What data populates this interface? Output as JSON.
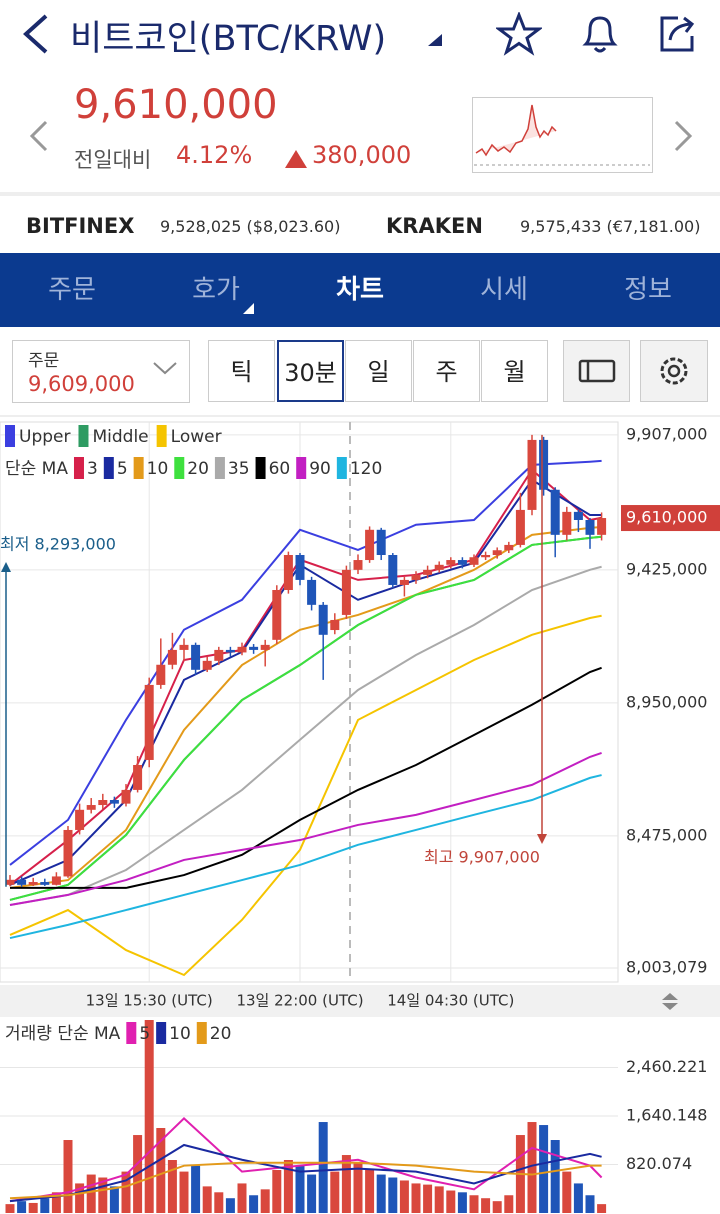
{
  "header": {
    "title": "비트코인(BTC/KRW)"
  },
  "price": {
    "current": "9,610,000",
    "label": "전일대비",
    "change_pct": "4.12%",
    "change": "380,000"
  },
  "exchanges": [
    {
      "name": "BITFINEX",
      "price": "9,528,025 ($8,023.60)"
    },
    {
      "name": "KRAKEN",
      "price": "9,575,433 (€7,181.00)"
    }
  ],
  "tabs": [
    "주문",
    "호가",
    "차트",
    "시세",
    "정보"
  ],
  "order": {
    "label": "주문",
    "price": "9,609,000"
  },
  "intervals": [
    "틱",
    "30분",
    "일",
    "주",
    "월"
  ],
  "chart_data": [
    {
      "type": "candlestick",
      "categories": [
        null,
        null,
        null,
        null,
        null,
        null,
        null,
        null,
        null,
        null,
        null,
        null,
        "13일 15:30 (UTC)",
        null,
        null,
        null,
        null,
        null,
        null,
        null,
        null,
        null,
        null,
        null,
        null,
        "13일 22:00 (UTC)",
        null,
        null,
        null,
        null,
        null,
        null,
        null,
        null,
        null,
        null,
        null,
        null,
        "14일 04:30 (UTC)",
        null,
        null,
        null,
        null,
        null,
        null,
        null,
        null,
        null,
        null,
        null,
        null,
        null
      ],
      "open": [
        8300000,
        8318000,
        8300000,
        8310000,
        8300000,
        8330000,
        8496000,
        8568000,
        8585000,
        8603000,
        8590000,
        8639000,
        8746000,
        9014000,
        9086000,
        9139000,
        9157000,
        9068000,
        9100000,
        9139000,
        9130000,
        9150000,
        9139000,
        9175000,
        9353000,
        9478000,
        9389000,
        9300000,
        9210000,
        9264000,
        9425000,
        9460000,
        9568000,
        9478000,
        9371000,
        9389000,
        9407000,
        9425000,
        9443000,
        9460000,
        9443000,
        9470000,
        9478000,
        9495000,
        9514000,
        9639000,
        9889000,
        9711000,
        9550000,
        9632000,
        9603000,
        9550000
      ],
      "high": [
        8335000,
        8330000,
        8325000,
        8322000,
        8345000,
        8510000,
        8590000,
        8610000,
        8625000,
        8615000,
        8660000,
        8760000,
        9040000,
        9180000,
        9200000,
        9180000,
        9165000,
        9115000,
        9150000,
        9150000,
        9165000,
        9160000,
        9175000,
        9370000,
        9490000,
        9485000,
        9400000,
        9310000,
        9270000,
        9440000,
        9480000,
        9580000,
        9575000,
        9485000,
        9400000,
        9420000,
        9440000,
        9455000,
        9470000,
        9470000,
        9480000,
        9490000,
        9505000,
        9525000,
        9700000,
        9907000,
        9900000,
        9720000,
        9650000,
        9640000,
        9610000,
        9630000
      ],
      "low": [
        8295000,
        8293000,
        8296000,
        8296000,
        8298000,
        8325000,
        8480000,
        8555000,
        8570000,
        8575000,
        8580000,
        8630000,
        8720000,
        9000000,
        9070000,
        9100000,
        9050000,
        9060000,
        9085000,
        9115000,
        9120000,
        9125000,
        9080000,
        9160000,
        9340000,
        9370000,
        9280000,
        9032000,
        9195000,
        9250000,
        9410000,
        9450000,
        9460000,
        9360000,
        9330000,
        9375000,
        9395000,
        9415000,
        9430000,
        9430000,
        9435000,
        9460000,
        9465000,
        9485000,
        9505000,
        9620000,
        9690000,
        9470000,
        9530000,
        9560000,
        9500000,
        9530000
      ],
      "close": [
        8318000,
        8300000,
        8310000,
        8300000,
        8330000,
        8496000,
        8568000,
        8585000,
        8603000,
        8590000,
        8639000,
        8728000,
        9014000,
        9086000,
        9139000,
        9157000,
        9068000,
        9100000,
        9139000,
        9130000,
        9150000,
        9139000,
        9157000,
        9353000,
        9478000,
        9389000,
        9300000,
        9193000,
        9246000,
        9425000,
        9460000,
        9568000,
        9478000,
        9371000,
        9389000,
        9407000,
        9425000,
        9443000,
        9460000,
        9443000,
        9470000,
        9478000,
        9495000,
        9514000,
        9639000,
        9889000,
        9711000,
        9550000,
        9632000,
        9603000,
        9550000,
        9610000
      ],
      "up_color": "#d9483d",
      "down_color": "#1f55b8",
      "bands": [
        {
          "name": "Upper",
          "color": "#3b3fe0",
          "x": [
            0,
            5,
            10,
            15,
            20,
            25,
            30,
            35,
            40,
            45,
            50,
            51
          ],
          "values": [
            8371000,
            8532000,
            8889000,
            9211000,
            9318000,
            9568000,
            9496000,
            9586000,
            9603000,
            9800000,
            9811000,
            9814000
          ]
        },
        {
          "name": "Middle",
          "color": "#2e9b62",
          "x": [
            0,
            5,
            10,
            15,
            20,
            25,
            30,
            35,
            40,
            45,
            50,
            51
          ],
          "values": [
            8246000,
            8300000,
            8478000,
            8746000,
            8960000,
            9085000,
            9228000,
            9336000,
            9389000,
            9514000,
            9539000,
            9543000
          ]
        },
        {
          "name": "Lower",
          "color": "#f5c400",
          "x": [
            0,
            5,
            10,
            15,
            20,
            25,
            30,
            35,
            40,
            45,
            50,
            51
          ],
          "values": [
            8121000,
            8210000,
            8067000,
            7978000,
            8175000,
            8425000,
            8889000,
            8996000,
            9103000,
            9193000,
            9253000,
            9261000
          ]
        }
      ],
      "ma_label": "단순 MA",
      "series": [
        {
          "name": "3",
          "color": "#d6204a",
          "x": [
            0,
            5,
            10,
            15,
            20,
            25,
            30,
            35,
            40,
            45,
            50,
            51
          ],
          "values": [
            8300000,
            8460000,
            8639000,
            9103000,
            9139000,
            9461000,
            9389000,
            9407000,
            9461000,
            9782000,
            9603000,
            9611000
          ]
        },
        {
          "name": "5",
          "color": "#1a2aa0",
          "x": [
            0,
            5,
            10,
            15,
            20,
            25,
            30,
            35,
            40,
            45,
            50,
            51
          ],
          "values": [
            8300000,
            8389000,
            8603000,
            9032000,
            9132000,
            9443000,
            9318000,
            9389000,
            9450000,
            9746000,
            9621000,
            9621000
          ]
        },
        {
          "name": "10",
          "color": "#e39a1a",
          "x": [
            0,
            5,
            10,
            15,
            20,
            25,
            30,
            35,
            40,
            45,
            50,
            51
          ],
          "values": [
            8289000,
            8317000,
            8496000,
            8853000,
            9085000,
            9211000,
            9264000,
            9336000,
            9425000,
            9550000,
            9575000,
            9578000
          ]
        },
        {
          "name": "20",
          "color": "#3ee03e",
          "x": [
            0,
            5,
            10,
            15,
            20,
            25,
            30,
            35,
            40,
            45,
            50,
            51
          ],
          "values": [
            8246000,
            8300000,
            8478000,
            8746000,
            8960000,
            9085000,
            9228000,
            9336000,
            9389000,
            9514000,
            9539000,
            9543000
          ]
        },
        {
          "name": "35",
          "color": "#aaaaaa",
          "x": [
            0,
            5,
            10,
            15,
            20,
            25,
            30,
            35,
            40,
            45,
            50,
            51
          ],
          "values": [
            8228000,
            8264000,
            8353000,
            8496000,
            8639000,
            8818000,
            8996000,
            9121000,
            9228000,
            9353000,
            9425000,
            9436000
          ]
        },
        {
          "name": "60",
          "color": "#000000",
          "x": [
            0,
            5,
            10,
            15,
            20,
            25,
            30,
            35,
            40,
            45,
            50,
            51
          ],
          "values": [
            8289000,
            8289000,
            8289000,
            8335000,
            8407000,
            8532000,
            8639000,
            8728000,
            8835000,
            8943000,
            9060000,
            9075000
          ]
        },
        {
          "name": "90",
          "color": "#c21fc2",
          "x": [
            0,
            5,
            10,
            15,
            20,
            25,
            30,
            35,
            40,
            45,
            50,
            51
          ],
          "values": [
            8228000,
            8264000,
            8317000,
            8389000,
            8425000,
            8460000,
            8514000,
            8550000,
            8603000,
            8657000,
            8757000,
            8771000
          ]
        },
        {
          "name": "120",
          "color": "#1fb5e0",
          "x": [
            0,
            5,
            10,
            15,
            20,
            25,
            30,
            35,
            40,
            45,
            50,
            51
          ],
          "values": [
            8110000,
            8157000,
            8210000,
            8264000,
            8317000,
            8371000,
            8443000,
            8496000,
            8550000,
            8603000,
            8682000,
            8692000
          ]
        }
      ],
      "ylim": [
        7953000,
        9953000
      ],
      "yticks": [
        {
          "value": 9907000,
          "label": "9,907,000"
        },
        {
          "value": 9425000,
          "label": "9,425,000"
        },
        {
          "value": 8950000,
          "label": "8,950,000"
        },
        {
          "value": 8475000,
          "label": "8,475,000"
        },
        {
          "value": 8003079,
          "label": "8,003,079"
        }
      ],
      "last_label": {
        "value": 9610000,
        "label": "9,610,000"
      },
      "annotations": [
        "최저 8,293,000",
        "최고 9,907,000"
      ],
      "grid": true
    },
    {
      "type": "bar",
      "ma_label": "거래량 단순 MA",
      "values": [
        150,
        200,
        170,
        250,
        350,
        1234,
        500,
        650,
        600,
        450,
        700,
        1318,
        3263,
        1437,
        896,
        700,
        800,
        450,
        350,
        250,
        500,
        300,
        400,
        727,
        896,
        800,
        650,
        1538,
        700,
        980,
        850,
        750,
        650,
        600,
        550,
        500,
        480,
        450,
        380,
        350,
        300,
        250,
        200,
        300,
        1318,
        1538,
        1487,
        1234,
        700,
        500,
        300,
        150
      ],
      "series": [
        {
          "name": "5",
          "color": "#e020b0",
          "x": [
            0,
            5,
            10,
            15,
            20,
            25,
            30,
            35,
            40,
            45,
            50,
            51
          ],
          "values": [
            200,
            350,
            650,
            1600,
            700,
            800,
            900,
            600,
            400,
            1100,
            800,
            600
          ]
        },
        {
          "name": "10",
          "color": "#1a2aa0",
          "x": [
            0,
            5,
            10,
            15,
            20,
            25,
            30,
            35,
            40,
            45,
            50,
            51
          ],
          "values": [
            200,
            300,
            550,
            1150,
            900,
            700,
            750,
            700,
            500,
            800,
            1000,
            950
          ]
        },
        {
          "name": "20",
          "color": "#e39a1a",
          "x": [
            0,
            5,
            10,
            15,
            20,
            25,
            30,
            35,
            40,
            45,
            50,
            51
          ],
          "values": [
            250,
            300,
            450,
            800,
            850,
            850,
            850,
            800,
            700,
            650,
            800,
            800
          ]
        }
      ],
      "ylim": [
        0,
        3263
      ],
      "yticks": [
        {
          "value": 2460.221,
          "label": "2,460.221"
        },
        {
          "value": 1640.148,
          "label": "1,640.148"
        },
        820.074
      ],
      "grid": true
    }
  ]
}
